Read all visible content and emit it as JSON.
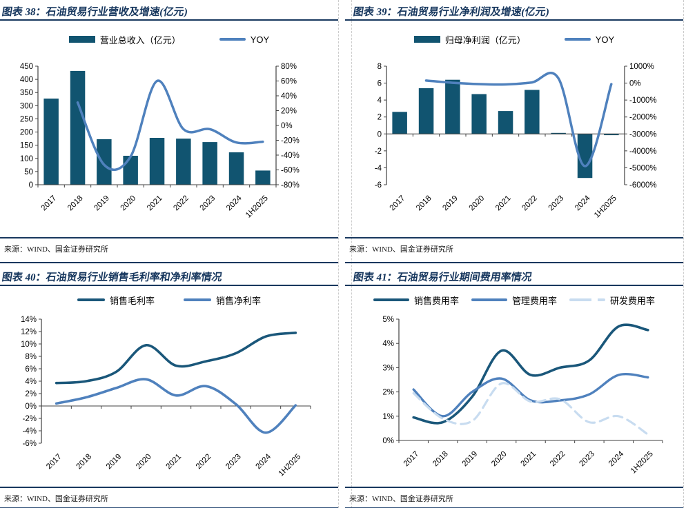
{
  "footer": {
    "source": "来源：WIND、国金证券研究所"
  },
  "colors": {
    "title_navy": "#17375E",
    "bar_navy": "#115470",
    "line_dark": "#1A577A",
    "line_medium": "#4F81BD",
    "line_light": "#C8DCF0",
    "axis_gray": "#404040",
    "divider_gray": "#cccccc"
  },
  "chart_data": [
    {
      "type": "bar",
      "title": "图表 38：石油贸易行业营收及增速(亿元)",
      "categories": [
        "2017",
        "2018",
        "2019",
        "2020",
        "2021",
        "2022",
        "2023",
        "2024",
        "1H2025"
      ],
      "left_axis": {
        "min": 0,
        "max": 450,
        "step": 50,
        "unit": ""
      },
      "right_axis": {
        "min": -80,
        "max": 80,
        "step": 20,
        "unit": "%"
      },
      "x_baseline": "bottom",
      "legend_position": "top-center",
      "grid": false,
      "series": [
        {
          "kind": "bar",
          "name": "营业总收入（亿元）",
          "axis": "left",
          "color": "#115470",
          "values": [
            327,
            432,
            173,
            110,
            178,
            175,
            162,
            123,
            54
          ]
        },
        {
          "kind": "line",
          "name": "YOY",
          "axis": "right",
          "color": "#4F81BD",
          "width": 3.5,
          "values": [
            null,
            31,
            -53,
            -42,
            60,
            -5,
            -5,
            -23,
            -22
          ]
        }
      ]
    },
    {
      "type": "bar",
      "title": "图表 39：石油贸易行业净利润及增速(亿元)",
      "categories": [
        "2017",
        "2018",
        "2019",
        "2020",
        "2021",
        "2022",
        "2023",
        "2024",
        "1H2025"
      ],
      "left_axis": {
        "min": -6,
        "max": 8,
        "step": 2,
        "unit": ""
      },
      "right_axis": {
        "min": -6000,
        "max": 1000,
        "step": 1000,
        "unit": "%"
      },
      "x_baseline": "zero",
      "legend_position": "top-center",
      "grid": false,
      "series": [
        {
          "kind": "bar",
          "name": "归母净利润（亿元）",
          "axis": "left",
          "color": "#115470",
          "values": [
            2.6,
            5.4,
            6.4,
            4.7,
            2.7,
            5.2,
            0.12,
            -5.2,
            -0.15
          ]
        },
        {
          "kind": "line",
          "name": "YOY",
          "axis": "right",
          "color": "#4F81BD",
          "width": 3.5,
          "values": [
            null,
            150,
            20,
            -60,
            -80,
            40,
            280,
            -4900,
            -60
          ]
        }
      ]
    },
    {
      "type": "line",
      "title": "图表 40：石油贸易行业销售毛利率和净利率情况",
      "categories": [
        "2017",
        "2018",
        "2019",
        "2020",
        "2021",
        "2022",
        "2023",
        "2024",
        "1H2025"
      ],
      "left_axis": {
        "min": -6,
        "max": 14,
        "step": 2,
        "unit": "%"
      },
      "x_baseline": "zero",
      "legend_position": "top-center",
      "grid": false,
      "series": [
        {
          "kind": "line",
          "name": "销售毛利率",
          "axis": "left",
          "color": "#1A577A",
          "width": 3.6,
          "values": [
            3.7,
            4.0,
            5.5,
            9.8,
            6.5,
            7.2,
            8.5,
            11.2,
            11.8
          ]
        },
        {
          "kind": "line",
          "name": "销售净利率",
          "axis": "left",
          "color": "#4F81BD",
          "width": 3.6,
          "values": [
            0.4,
            1.4,
            2.9,
            4.3,
            1.7,
            3.2,
            0.3,
            -4.3,
            0.1
          ]
        }
      ]
    },
    {
      "type": "line",
      "title": "图表 41：石油贸易行业期间费用率情况",
      "categories": [
        "2017",
        "2018",
        "2019",
        "2020",
        "2021",
        "2022",
        "2023",
        "2024",
        "1H2025"
      ],
      "left_axis": {
        "min": 0,
        "max": 5,
        "step": 1,
        "unit": "%"
      },
      "x_baseline": "bottom",
      "legend_position": "top-center",
      "grid": false,
      "series": [
        {
          "kind": "line",
          "name": "销售费用率",
          "axis": "left",
          "color": "#1A577A",
          "width": 3.6,
          "values": [
            0.95,
            0.75,
            1.8,
            3.7,
            2.7,
            3.0,
            3.3,
            4.7,
            4.55
          ]
        },
        {
          "kind": "line",
          "name": "管理费用率",
          "axis": "left",
          "color": "#4F81BD",
          "width": 3.4,
          "values": [
            2.1,
            1.0,
            2.0,
            2.55,
            1.65,
            1.65,
            1.9,
            2.7,
            2.6
          ]
        },
        {
          "kind": "line",
          "name": "研发费用率",
          "axis": "left",
          "color": "#C8DCF0",
          "width": 3.2,
          "dash": "13 8",
          "values": [
            1.95,
            0.9,
            0.8,
            2.35,
            1.6,
            1.7,
            0.75,
            1.0,
            0.25
          ]
        }
      ]
    }
  ]
}
